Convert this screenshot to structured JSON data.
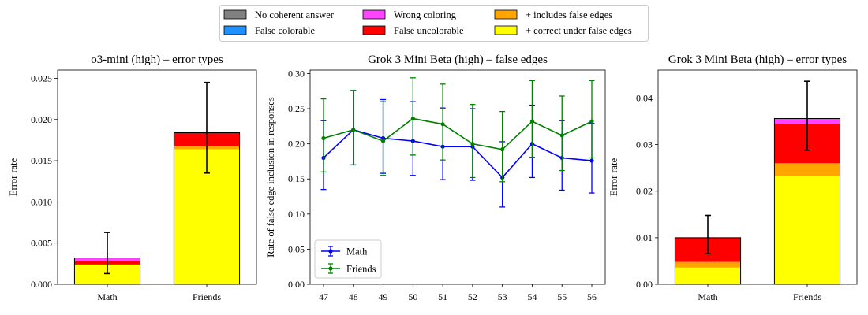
{
  "legend": {
    "items": [
      {
        "label": "No coherent answer",
        "color": "#808080"
      },
      {
        "label": "False colorable",
        "color": "#1e90ff"
      },
      {
        "label": "Wrong coloring",
        "color": "#ff44ff"
      },
      {
        "label": "False uncolorable",
        "color": "#ff0000"
      },
      {
        "label": "+ includes false edges",
        "color": "#ffa500"
      },
      {
        "label": "+ correct under false edges",
        "color": "#ffff00"
      }
    ]
  },
  "chart_data": [
    {
      "type": "bar",
      "stacked": true,
      "title": "o3-mini (high) – error types",
      "xlabel": "",
      "ylabel": "Error rate",
      "ylim": [
        0,
        0.026
      ],
      "yticks": [
        "0.000",
        "0.005",
        "0.010",
        "0.015",
        "0.020",
        "0.025"
      ],
      "categories": [
        "Math",
        "Friends"
      ],
      "series": [
        {
          "name": "+ correct under false edges",
          "color": "#ffff00",
          "values": [
            0.0024,
            0.0164
          ]
        },
        {
          "name": "+ includes false edges",
          "color": "#ffa500",
          "values": [
            0.0,
            0.0004
          ]
        },
        {
          "name": "False uncolorable",
          "color": "#ff0000",
          "values": [
            0.0004,
            0.0016
          ]
        },
        {
          "name": "Wrong coloring",
          "color": "#ff44ff",
          "values": [
            0.0004,
            0.0
          ]
        }
      ],
      "error_bars": [
        {
          "center": 0.0032,
          "low": 0.0013,
          "high": 0.0063
        },
        {
          "center": 0.0184,
          "low": 0.0135,
          "high": 0.0245
        }
      ]
    },
    {
      "type": "line",
      "title": "Grok 3 Mini Beta (high) – false edges",
      "xlabel": "",
      "ylabel": "Rate of false edge inclusion in responses",
      "ylim": [
        0,
        0.305
      ],
      "yticks": [
        "0.00",
        "0.05",
        "0.10",
        "0.15",
        "0.20",
        "0.25",
        "0.30"
      ],
      "x": [
        47,
        48,
        49,
        50,
        51,
        52,
        53,
        54,
        55,
        56
      ],
      "legend_position": "lower-left",
      "series": [
        {
          "name": "Math",
          "color": "#0000ff",
          "values": [
            0.18,
            0.22,
            0.208,
            0.204,
            0.196,
            0.196,
            0.152,
            0.2,
            0.18,
            0.176
          ],
          "err_low": [
            0.135,
            0.17,
            0.158,
            0.155,
            0.149,
            0.148,
            0.11,
            0.152,
            0.134,
            0.13
          ],
          "err_high": [
            0.233,
            0.276,
            0.263,
            0.26,
            0.251,
            0.25,
            0.203,
            0.255,
            0.233,
            0.229
          ]
        },
        {
          "name": "Friends",
          "color": "#008000",
          "values": [
            0.208,
            0.22,
            0.204,
            0.236,
            0.228,
            0.2,
            0.192,
            0.232,
            0.212,
            0.232
          ],
          "err_low": [
            0.16,
            0.17,
            0.155,
            0.184,
            0.177,
            0.152,
            0.146,
            0.181,
            0.162,
            0.18
          ],
          "err_high": [
            0.264,
            0.276,
            0.26,
            0.294,
            0.285,
            0.256,
            0.246,
            0.29,
            0.268,
            0.29
          ]
        }
      ]
    },
    {
      "type": "bar",
      "stacked": true,
      "title": "Grok 3 Mini Beta (high) – error types",
      "xlabel": "",
      "ylabel": "Error rate",
      "ylim": [
        0,
        0.046
      ],
      "yticks": [
        "0.00",
        "0.01",
        "0.02",
        "0.03",
        "0.04"
      ],
      "categories": [
        "Math",
        "Friends"
      ],
      "series": [
        {
          "name": "+ correct under false edges",
          "color": "#ffff00",
          "values": [
            0.0036,
            0.0232
          ]
        },
        {
          "name": "+ includes false edges",
          "color": "#ffa500",
          "values": [
            0.0012,
            0.0028
          ]
        },
        {
          "name": "False uncolorable",
          "color": "#ff0000",
          "values": [
            0.0052,
            0.0084
          ]
        },
        {
          "name": "Wrong coloring",
          "color": "#ff44ff",
          "values": [
            0.0,
            0.0012
          ]
        }
      ],
      "error_bars": [
        {
          "center": 0.01,
          "low": 0.0066,
          "high": 0.0148
        },
        {
          "center": 0.0356,
          "low": 0.0288,
          "high": 0.0436
        }
      ]
    }
  ]
}
